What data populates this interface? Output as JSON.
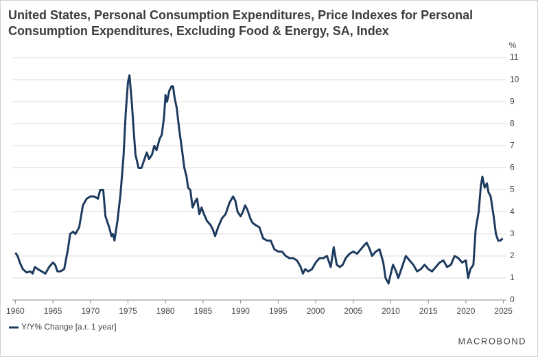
{
  "chart_data": {
    "type": "line",
    "title": "United States, Personal Consumption Expenditures, Price Indexes for Personal Consumption Expenditures, Excluding Food & Energy, SA, Index",
    "y_axis_label": "%",
    "source_logo": "MACROBOND",
    "legend": "bottom-left",
    "grid": true,
    "xlim": [
      1959.6,
      2025.4
    ],
    "xticks": [
      1960,
      1965,
      1970,
      1975,
      1980,
      1985,
      1990,
      1995,
      2000,
      2005,
      2010,
      2015,
      2020,
      2025
    ],
    "ylim": [
      0,
      11
    ],
    "yticks": [
      0,
      1,
      2,
      3,
      4,
      5,
      6,
      7,
      8,
      9,
      10,
      11
    ],
    "series": [
      {
        "name": "Y/Y% Change [a.r. 1 year]",
        "color": "#1d3a5f",
        "x": [
          1960.0,
          1960.3,
          1960.6,
          1961.0,
          1961.5,
          1962.0,
          1962.3,
          1962.6,
          1963.0,
          1963.5,
          1964.0,
          1964.5,
          1965.0,
          1965.3,
          1965.6,
          1966.0,
          1966.5,
          1967.0,
          1967.3,
          1967.7,
          1968.0,
          1968.5,
          1969.0,
          1969.5,
          1970.0,
          1970.5,
          1971.0,
          1971.3,
          1971.7,
          1972.0,
          1972.5,
          1972.8,
          1973.0,
          1973.2,
          1973.6,
          1974.0,
          1974.4,
          1974.7,
          1975.0,
          1975.2,
          1975.5,
          1975.8,
          1976.0,
          1976.4,
          1976.8,
          1977.2,
          1977.5,
          1977.8,
          1978.2,
          1978.5,
          1978.8,
          1979.2,
          1979.5,
          1979.8,
          1980.0,
          1980.2,
          1980.5,
          1980.8,
          1981.0,
          1981.2,
          1981.5,
          1981.8,
          1982.2,
          1982.5,
          1982.8,
          1983.0,
          1983.3,
          1983.6,
          1984.0,
          1984.2,
          1984.5,
          1984.8,
          1985.0,
          1985.5,
          1986.0,
          1986.3,
          1986.6,
          1987.0,
          1987.5,
          1988.0,
          1988.5,
          1989.0,
          1989.3,
          1989.6,
          1990.0,
          1990.3,
          1990.6,
          1990.9,
          1991.3,
          1991.6,
          1992.0,
          1992.5,
          1993.0,
          1993.5,
          1994.0,
          1994.5,
          1995.0,
          1995.5,
          1996.0,
          1996.5,
          1997.0,
          1997.5,
          1998.0,
          1998.3,
          1998.6,
          1999.0,
          1999.5,
          2000.0,
          2000.5,
          2001.0,
          2001.5,
          2002.0,
          2002.4,
          2002.8,
          2003.2,
          2003.6,
          2004.0,
          2004.5,
          2005.0,
          2005.5,
          2006.0,
          2006.5,
          2006.8,
          2007.2,
          2007.5,
          2008.0,
          2008.5,
          2009.0,
          2009.3,
          2009.7,
          2010.0,
          2010.3,
          2010.7,
          2011.0,
          2011.5,
          2012.0,
          2012.5,
          2013.0,
          2013.5,
          2014.0,
          2014.5,
          2015.0,
          2015.5,
          2016.0,
          2016.5,
          2017.0,
          2017.5,
          2018.0,
          2018.5,
          2019.0,
          2019.5,
          2020.0,
          2020.3,
          2020.6,
          2021.0,
          2021.3,
          2021.7,
          2022.0,
          2022.2,
          2022.5,
          2022.8,
          2023.0,
          2023.3,
          2023.7,
          2024.0,
          2024.3,
          2024.6,
          2024.9
        ],
        "values": [
          2.15,
          2.0,
          1.7,
          1.4,
          1.25,
          1.3,
          1.2,
          1.5,
          1.4,
          1.3,
          1.2,
          1.5,
          1.7,
          1.6,
          1.3,
          1.3,
          1.4,
          2.3,
          3.0,
          3.1,
          3.0,
          3.3,
          4.3,
          4.6,
          4.7,
          4.7,
          4.6,
          5.0,
          5.0,
          3.8,
          3.3,
          2.9,
          3.0,
          2.7,
          3.6,
          4.8,
          6.5,
          8.5,
          9.9,
          10.2,
          9.0,
          7.5,
          6.6,
          6.0,
          6.0,
          6.4,
          6.7,
          6.4,
          6.6,
          7.0,
          6.8,
          7.3,
          7.5,
          8.3,
          9.3,
          9.0,
          9.5,
          9.7,
          9.7,
          9.2,
          8.7,
          7.8,
          6.8,
          6.0,
          5.6,
          5.1,
          5.0,
          4.2,
          4.5,
          4.6,
          3.9,
          4.2,
          4.0,
          3.6,
          3.4,
          3.2,
          2.9,
          3.3,
          3.7,
          3.9,
          4.4,
          4.7,
          4.5,
          4.0,
          3.8,
          4.0,
          4.3,
          4.1,
          3.7,
          3.5,
          3.4,
          3.3,
          2.8,
          2.7,
          2.7,
          2.3,
          2.2,
          2.2,
          2.0,
          1.9,
          1.9,
          1.8,
          1.5,
          1.2,
          1.4,
          1.3,
          1.4,
          1.7,
          1.9,
          1.9,
          2.0,
          1.5,
          2.4,
          1.6,
          1.5,
          1.6,
          1.9,
          2.1,
          2.2,
          2.1,
          2.3,
          2.5,
          2.6,
          2.3,
          2.0,
          2.2,
          2.3,
          1.7,
          1.0,
          0.75,
          1.2,
          1.6,
          1.3,
          1.0,
          1.5,
          2.0,
          1.8,
          1.6,
          1.3,
          1.4,
          1.6,
          1.4,
          1.3,
          1.5,
          1.7,
          1.8,
          1.5,
          1.6,
          2.0,
          1.9,
          1.7,
          1.8,
          1.0,
          1.4,
          1.6,
          3.2,
          4.0,
          5.2,
          5.6,
          5.1,
          5.3,
          4.9,
          4.7,
          3.8,
          3.0,
          2.7,
          2.7,
          2.8
        ]
      }
    ]
  }
}
